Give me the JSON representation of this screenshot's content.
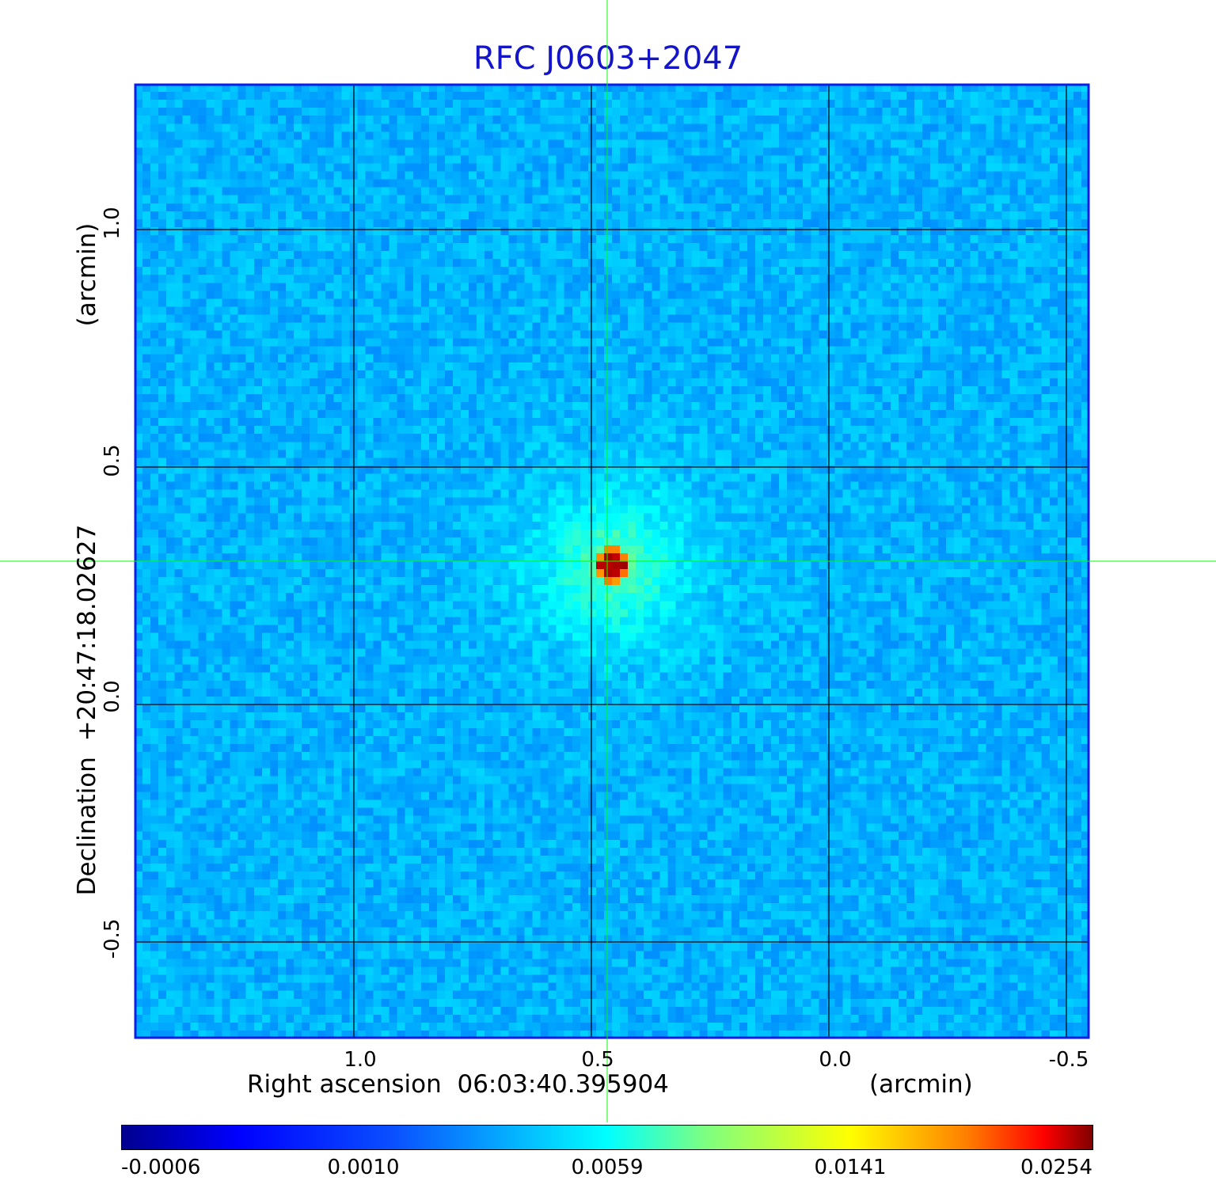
{
  "title": "RFC J0603+2047",
  "x_axis": {
    "label": "Right ascension  06:03:40.395904",
    "unit": "(arcmin)",
    "ticks": [
      "1.0",
      "0.5",
      "0.0",
      "-0.5"
    ]
  },
  "y_axis": {
    "label": "Declination  +20:47:18.02627",
    "unit": "(arcmin)",
    "ticks": [
      "1.0",
      "0.5",
      "0.0",
      "-0.5"
    ]
  },
  "colorbar": {
    "ticks": [
      "-0.0006",
      "0.0010",
      "0.0059",
      "0.0141",
      "0.0254"
    ],
    "colormap": "jet"
  },
  "colors": {
    "title": "#1414c8",
    "crosshair": "#00ff00",
    "grid": "#000000",
    "frame": "#0a1ee6"
  }
}
